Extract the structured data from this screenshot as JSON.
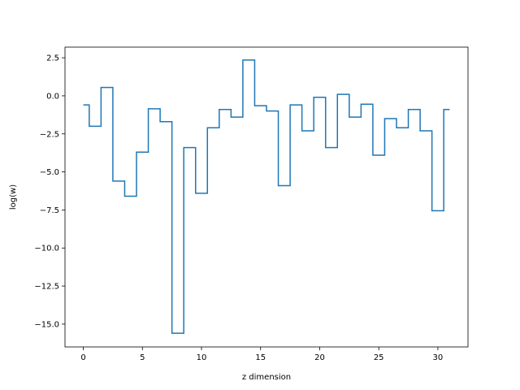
{
  "chart_data": {
    "type": "line",
    "drawstyle": "steps-mid",
    "title": "",
    "xlabel": "z dimension",
    "ylabel": "log(w)",
    "xlim": [
      -1.55,
      32.55
    ],
    "ylim": [
      -16.5,
      3.2
    ],
    "xticks": [
      0,
      5,
      10,
      15,
      20,
      25,
      30
    ],
    "xtick_labels": [
      "0",
      "5",
      "10",
      "15",
      "20",
      "25",
      "30"
    ],
    "yticks": [
      2.5,
      0.0,
      -2.5,
      -5.0,
      -7.5,
      -10.0,
      -12.5,
      -15.0
    ],
    "ytick_labels": [
      "2.5",
      "0.0",
      "−2.5",
      "−5.0",
      "−7.5",
      "−10.0",
      "−12.5",
      "−15.0"
    ],
    "grid": false,
    "series": [
      {
        "color": "#1f77b4",
        "x": [
          0,
          1,
          2,
          3,
          4,
          5,
          6,
          7,
          8,
          9,
          10,
          11,
          12,
          13,
          14,
          15,
          16,
          17,
          18,
          19,
          20,
          21,
          22,
          23,
          24,
          25,
          26,
          27,
          28,
          29,
          30,
          31
        ],
        "y": [
          -0.6,
          -2.0,
          0.55,
          -5.6,
          -6.6,
          -3.7,
          -0.85,
          -1.7,
          -15.6,
          -3.4,
          -6.4,
          -2.1,
          -0.9,
          -1.4,
          2.35,
          -0.65,
          -1.0,
          -5.9,
          -0.6,
          -2.3,
          -0.1,
          -3.4,
          0.1,
          -1.4,
          -0.55,
          -3.9,
          -1.5,
          -2.1,
          -0.9,
          -2.3,
          -7.55,
          -0.9
        ]
      }
    ]
  }
}
